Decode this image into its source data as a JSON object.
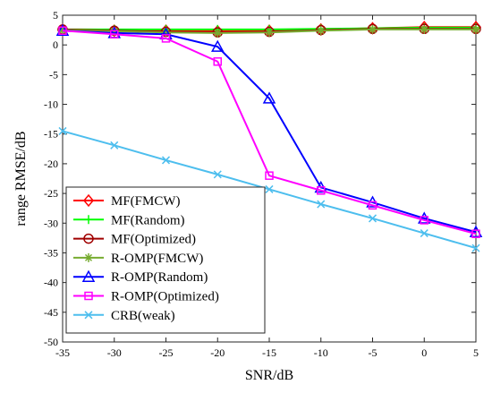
{
  "chart_data": {
    "type": "line",
    "title": "",
    "xlabel": "SNR/dB",
    "ylabel": "range RMSE/dB",
    "xlim": [
      -35,
      5
    ],
    "ylim": [
      -50,
      5
    ],
    "grid": false,
    "legend_position": "bottom-left",
    "xticks": [
      "-35",
      "-30",
      "-25",
      "-20",
      "-15",
      "-10",
      "-5",
      "0",
      "5"
    ],
    "yticks": [
      "5",
      "0",
      "-5",
      "-10",
      "-15",
      "-20",
      "-25",
      "-30",
      "-35",
      "-40",
      "-45",
      "-50"
    ],
    "x": [
      -35,
      -30,
      -25,
      -20,
      -15,
      -10,
      -5,
      0,
      5
    ],
    "series": [
      {
        "name": "MF(FMCW)",
        "color": "#ff0000",
        "marker": "diamond",
        "values": [
          2.5,
          2.4,
          2.4,
          2.3,
          2.4,
          2.6,
          2.8,
          3.0,
          3.0
        ]
      },
      {
        "name": "MF(Random)",
        "color": "#00ff00",
        "marker": "plus",
        "values": [
          2.6,
          2.6,
          2.6,
          2.6,
          2.6,
          2.7,
          2.8,
          2.9,
          2.9
        ]
      },
      {
        "name": "MF(Optimized)",
        "color": "#a00000",
        "marker": "circle",
        "values": [
          2.6,
          2.4,
          2.2,
          2.1,
          2.2,
          2.5,
          2.7,
          2.7,
          2.7
        ]
      },
      {
        "name": "R-OMP(FMCW)",
        "color": "#77ac30",
        "marker": "asterisk",
        "values": [
          2.5,
          2.3,
          2.1,
          2.0,
          2.1,
          2.4,
          2.6,
          2.6,
          2.6
        ]
      },
      {
        "name": "R-OMP(Random)",
        "color": "#0000ff",
        "marker": "triangle",
        "values": [
          2.4,
          2.0,
          1.8,
          -0.3,
          -9.0,
          -24.0,
          -26.5,
          -29.2,
          -31.5
        ]
      },
      {
        "name": "R-OMP(Optimized)",
        "color": "#ff00ff",
        "marker": "square",
        "values": [
          2.4,
          1.8,
          1.1,
          -2.8,
          -22.0,
          -24.5,
          -27.0,
          -29.5,
          -31.8
        ]
      },
      {
        "name": "CRB(weak)",
        "color": "#4dbeee",
        "marker": "x",
        "values": [
          -14.5,
          -16.9,
          -19.4,
          -21.8,
          -24.3,
          -26.8,
          -29.2,
          -31.7,
          -34.2
        ]
      }
    ]
  }
}
